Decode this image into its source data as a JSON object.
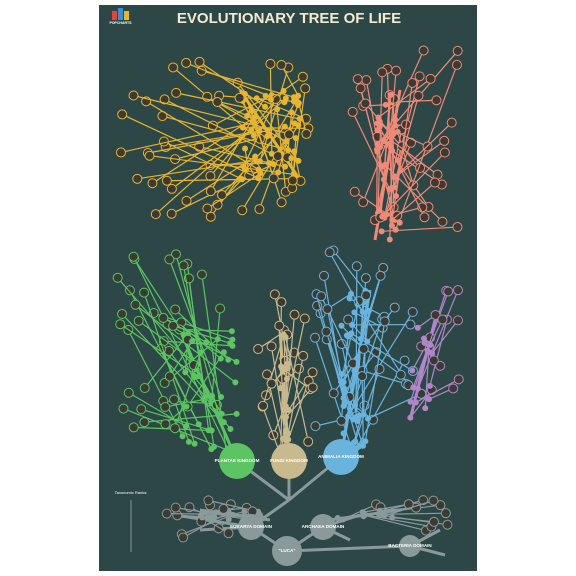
{
  "header": {
    "title": "EVOLUTIONARY TREE OF LIFE",
    "brand": "POPCHARTS"
  },
  "kingdoms": [
    {
      "label": "PLANTAE KINGDOM"
    },
    {
      "label": "FUNGI KINGDOM"
    },
    {
      "label": "ANIMALIA KINGDOM"
    }
  ],
  "domains": [
    {
      "label": "EUKARYA DOMAIN"
    },
    {
      "label": "ARCHAEA DOMAIN"
    },
    {
      "label": "BACTERIA DOMAIN"
    }
  ],
  "root": {
    "label": "\"LUCA\""
  },
  "legend": {
    "title": "Taxonomic Ranks:"
  }
}
